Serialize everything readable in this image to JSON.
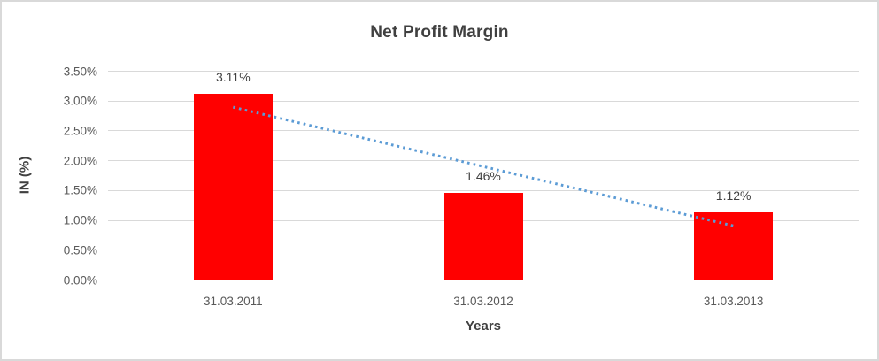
{
  "chart_data": {
    "type": "bar",
    "title": "Net Profit Margin",
    "categories": [
      "31.03.2011",
      "31.03.2012",
      "31.03.2013"
    ],
    "values": [
      3.11,
      1.46,
      1.12
    ],
    "data_labels": [
      "3.11%",
      "1.46%",
      "1.12%"
    ],
    "xlabel": "Years",
    "ylabel": "IN (%)",
    "ylim": [
      0,
      3.5
    ],
    "ytick_step": 0.5,
    "ytick_labels": [
      "0.00%",
      "0.50%",
      "1.00%",
      "1.50%",
      "2.00%",
      "2.50%",
      "3.00%",
      "3.50%"
    ],
    "grid": true,
    "legend": "none",
    "bar_color": "#ff0000",
    "trendline": {
      "type": "linear",
      "style": "dotted",
      "color": "#5b9bd5",
      "start_value": 2.89,
      "end_value": 0.9
    },
    "colors": {
      "gridline": "#d9d9d9",
      "axis_line": "#c9c9c9",
      "border": "#d9d9d9",
      "background": "#ffffff",
      "title_text": "#404040",
      "tick_text": "#595959",
      "data_label_text": "#404040"
    }
  }
}
